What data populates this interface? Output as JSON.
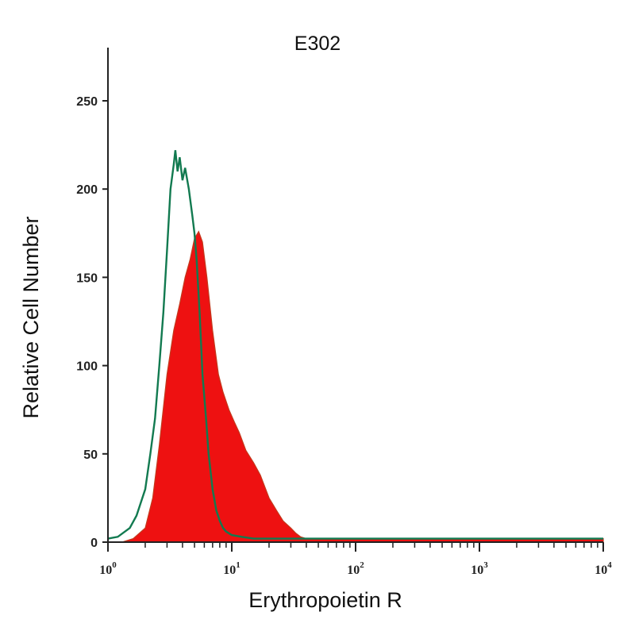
{
  "chart_data": {
    "type": "area",
    "title": "E302",
    "xlabel": "Erythropoietin R",
    "ylabel": "Relative Cell Number",
    "x_scale": "log",
    "xlim": [
      1,
      10000
    ],
    "ylim": [
      0,
      280
    ],
    "yticks": [
      0,
      50,
      100,
      150,
      200,
      250
    ],
    "ytick_labels": [
      "0",
      "50",
      "100",
      "150",
      "200",
      "250"
    ],
    "xticks": [
      1,
      10,
      100,
      1000,
      10000
    ],
    "xtick_labels": [
      {
        "base": "10",
        "exp": "0"
      },
      {
        "base": "10",
        "exp": "1"
      },
      {
        "base": "10",
        "exp": "2"
      },
      {
        "base": "10",
        "exp": "3"
      },
      {
        "base": "10",
        "exp": "4"
      }
    ],
    "grid": false,
    "series": [
      {
        "style": "filled",
        "color": "#ee1111",
        "x": [
          1,
          1.3,
          1.6,
          2.0,
          2.3,
          2.6,
          3.0,
          3.4,
          3.8,
          4.2,
          4.6,
          5.0,
          5.4,
          5.8,
          6.3,
          7.0,
          7.8,
          8.5,
          9.5,
          10.5,
          11.5,
          13.0,
          15.0,
          17.0,
          20.0,
          23.0,
          26.0,
          30.0,
          33.0,
          36.0,
          40.0,
          60.0,
          100.0,
          1000.0,
          10000.0
        ],
        "y": [
          0,
          0,
          2,
          8,
          25,
          55,
          95,
          120,
          135,
          150,
          160,
          172,
          176,
          170,
          150,
          120,
          95,
          85,
          75,
          68,
          62,
          52,
          45,
          38,
          25,
          18,
          12,
          8,
          5,
          3,
          2,
          2,
          2,
          2,
          2
        ]
      },
      {
        "style": "outline",
        "color": "#127a50",
        "x": [
          1,
          1.2,
          1.5,
          1.7,
          2.0,
          2.2,
          2.4,
          2.6,
          2.8,
          3.0,
          3.2,
          3.4,
          3.5,
          3.65,
          3.8,
          4.0,
          4.2,
          4.5,
          4.8,
          5.0,
          5.2,
          5.5,
          5.8,
          6.2,
          6.5,
          7.0,
          7.5,
          8.0,
          8.5,
          9.0,
          10.0,
          12.0,
          15.0,
          30.0,
          100.0,
          1000.0,
          10000.0
        ],
        "y": [
          2,
          3,
          8,
          15,
          30,
          50,
          70,
          100,
          130,
          165,
          200,
          214,
          222,
          210,
          218,
          205,
          212,
          200,
          185,
          175,
          160,
          130,
          95,
          70,
          50,
          30,
          18,
          12,
          8,
          6,
          4,
          3,
          2,
          2,
          2,
          2,
          2
        ]
      }
    ]
  }
}
